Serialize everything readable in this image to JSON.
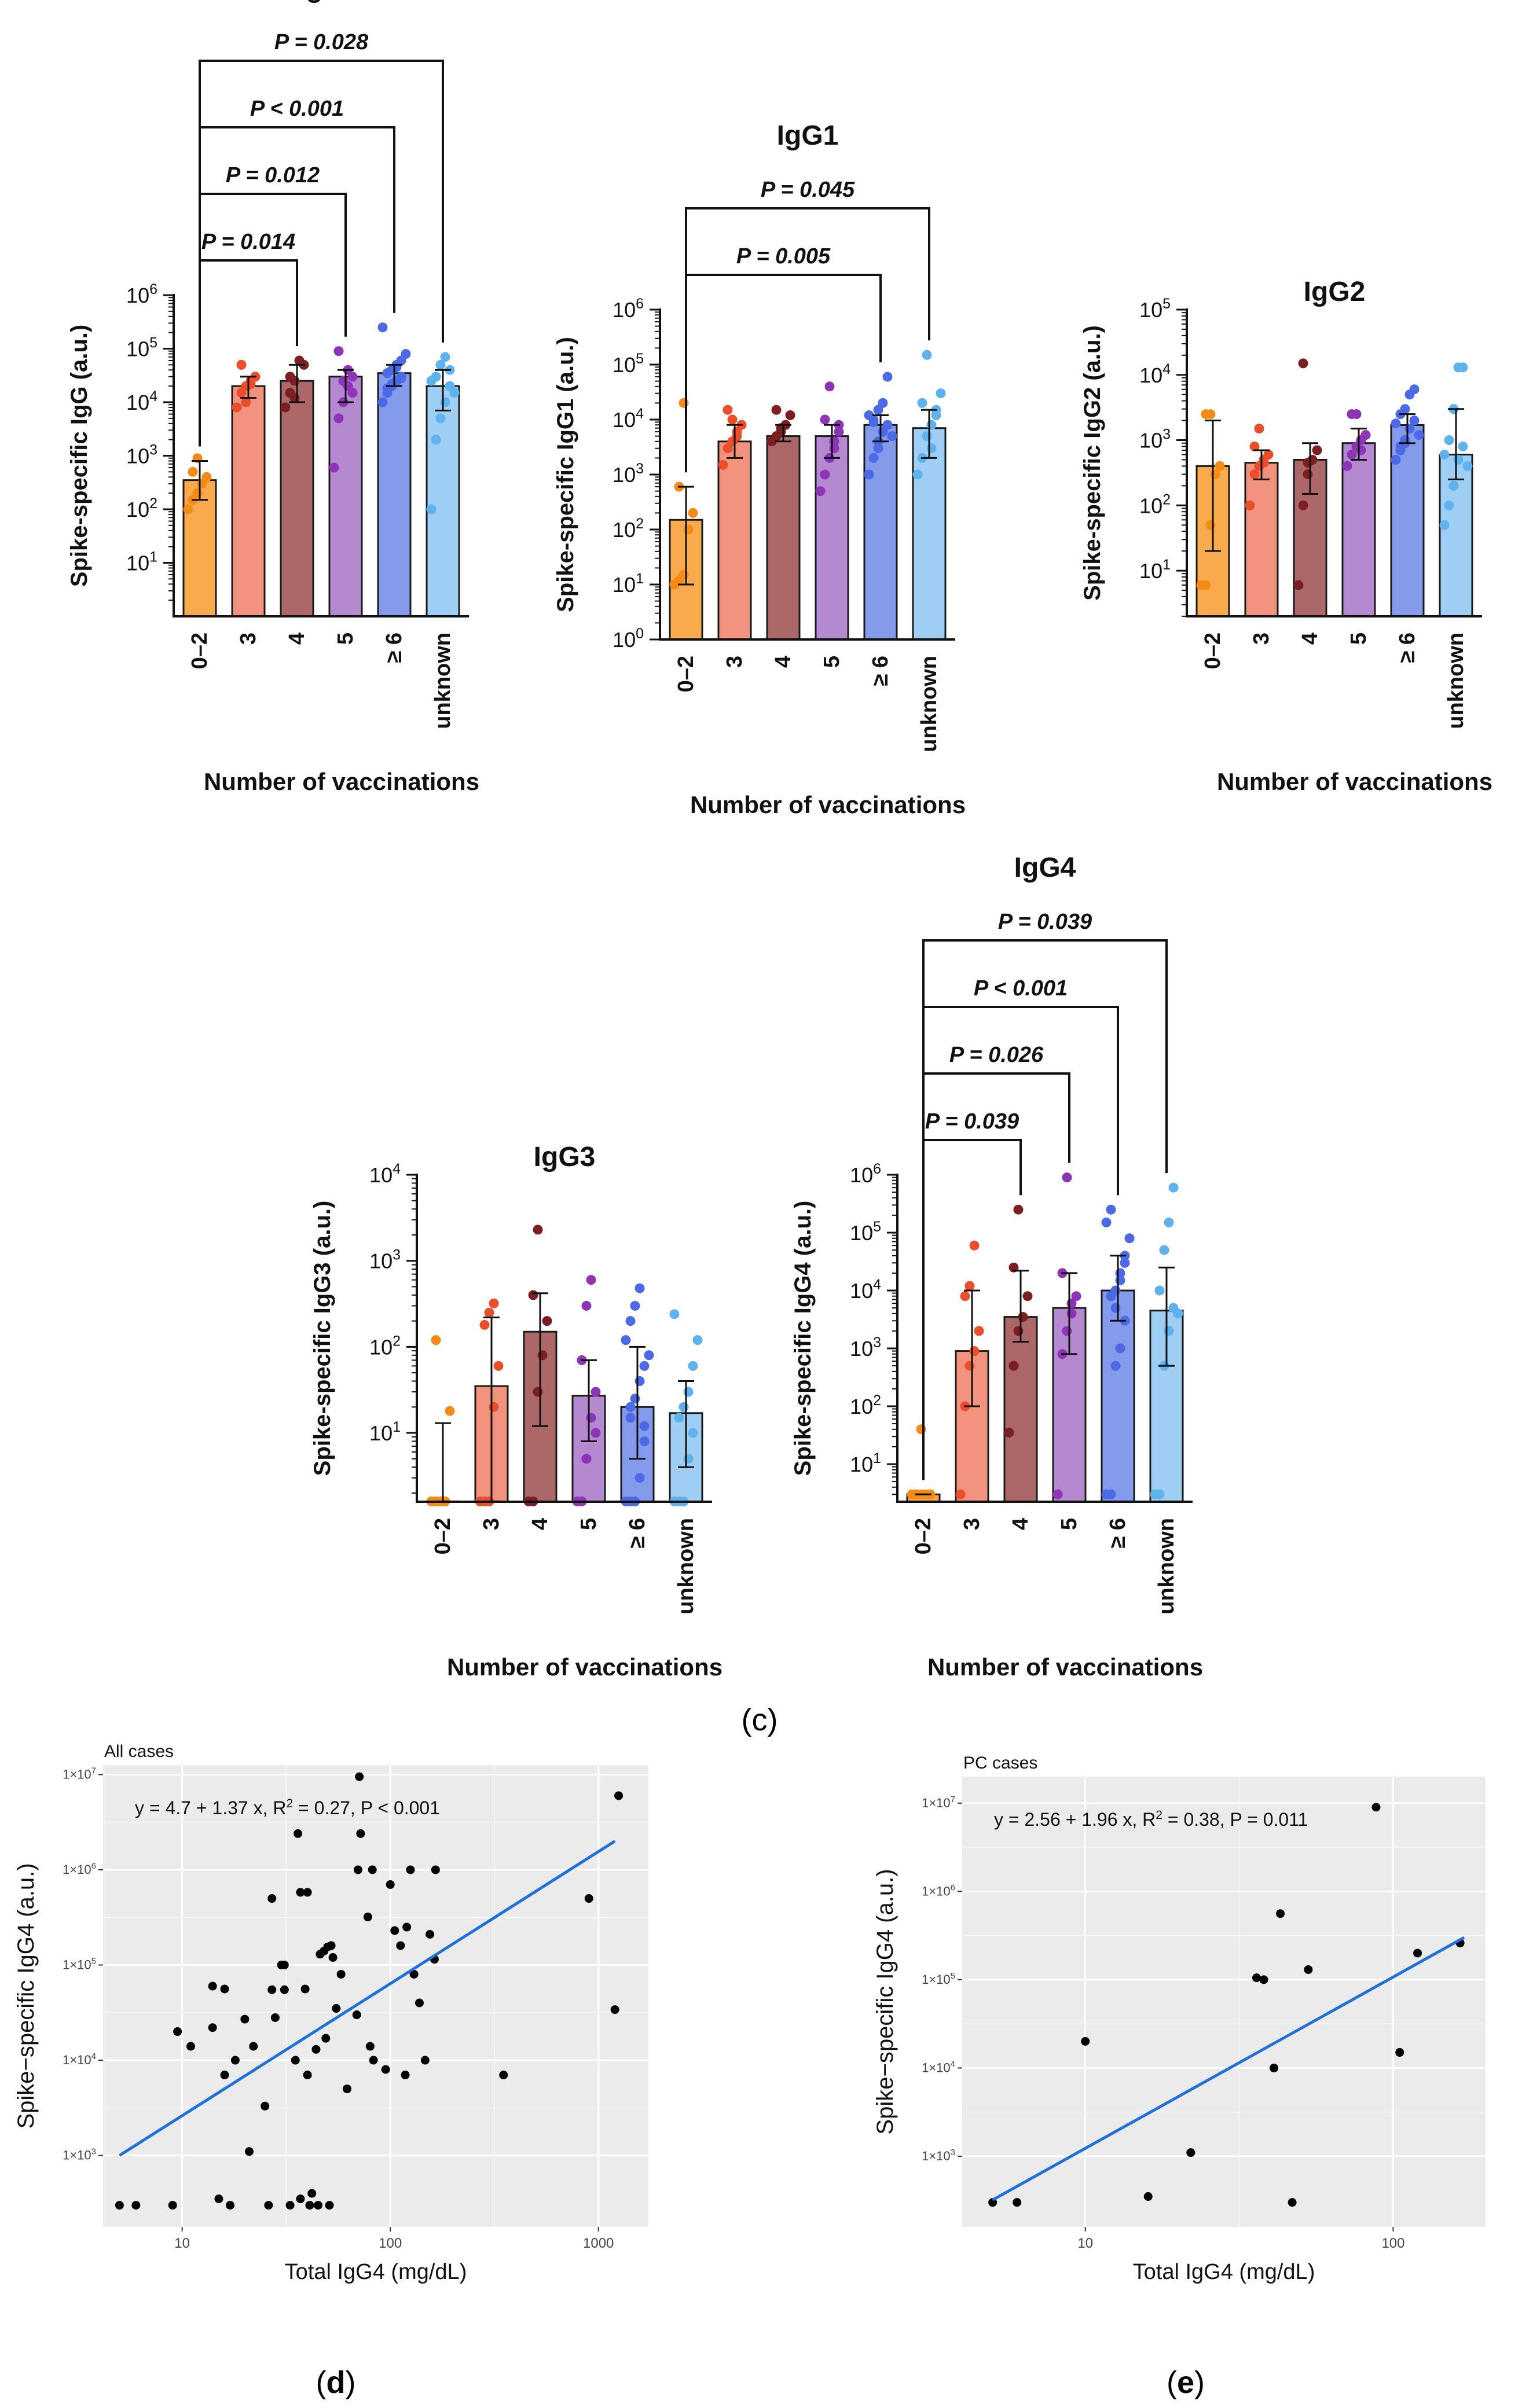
{
  "chart_data": [
    {
      "id": "igg",
      "type": "bar",
      "scale": "log",
      "title": "IgG",
      "ylabel": "Spike-specific IgG (a.u.)",
      "xlabel": "Number of vaccinations",
      "ylim_log10": [
        0,
        6
      ],
      "ytick_exponents": [
        1,
        2,
        3,
        4,
        5,
        6
      ],
      "categories": [
        "0–2",
        "3",
        "4",
        "5",
        "≥ 6",
        "unknown"
      ],
      "colors": [
        "#f79b2e",
        "#f08068",
        "#9e4d4f",
        "#a874c8",
        "#6f88e8",
        "#8dc6f2"
      ],
      "dot_colors": [
        "#f58b17",
        "#ea4e2a",
        "#7c1f22",
        "#8e34b6",
        "#4d6ae6",
        "#5eb3ef"
      ],
      "medians": [
        350,
        20000,
        25000,
        30000,
        35000,
        20000
      ],
      "error_low": [
        150,
        12000,
        10000,
        10000,
        20000,
        7000
      ],
      "error_high": [
        800,
        30000,
        50000,
        40000,
        50000,
        40000
      ],
      "points": [
        [
          100,
          150,
          200,
          300,
          400,
          500,
          900
        ],
        [
          8000,
          15000,
          20000,
          25000,
          30000,
          50000,
          10000,
          22000
        ],
        [
          8000,
          15000,
          25000,
          60000,
          50000,
          30000,
          12000
        ],
        [
          600,
          5000,
          10000,
          20000,
          30000,
          90000,
          25000,
          40000,
          15000
        ],
        [
          10000,
          15000,
          20000,
          25000,
          30000,
          35000,
          40000,
          50000,
          60000,
          80000,
          250000,
          18000,
          22000,
          45000,
          28000
        ],
        [
          100,
          2000,
          5000,
          10000,
          20000,
          30000,
          50000,
          70000,
          40000,
          15000,
          25000
        ]
      ],
      "comparisons": [
        {
          "from": 0,
          "to": 2,
          "label": "P = 0.014"
        },
        {
          "from": 0,
          "to": 3,
          "label": "P = 0.012"
        },
        {
          "from": 0,
          "to": 4,
          "label": "P < 0.001"
        },
        {
          "from": 0,
          "to": 5,
          "label": "P = 0.028"
        }
      ]
    },
    {
      "id": "igg1",
      "type": "bar",
      "scale": "log",
      "title": "IgG1",
      "ylabel": "Spike-specific IgG1 (a.u.)",
      "xlabel": "Number of vaccinations",
      "ylim_log10": [
        0,
        6
      ],
      "ytick_exponents": [
        0,
        1,
        2,
        3,
        4,
        5,
        6
      ],
      "categories": [
        "0–2",
        "3",
        "4",
        "5",
        "≥ 6",
        "unknown"
      ],
      "colors": [
        "#f79b2e",
        "#f08068",
        "#9e4d4f",
        "#a874c8",
        "#6f88e8",
        "#8dc6f2"
      ],
      "dot_colors": [
        "#f58b17",
        "#ea4e2a",
        "#7c1f22",
        "#8e34b6",
        "#4d6ae6",
        "#5eb3ef"
      ],
      "medians": [
        150,
        4000,
        5000,
        5000,
        8000,
        7000
      ],
      "error_low": [
        10,
        2000,
        4000,
        2000,
        4000,
        2000
      ],
      "error_high": [
        600,
        8000,
        8000,
        8000,
        12000,
        15000
      ],
      "points": [
        [
          10,
          12,
          15,
          100,
          200,
          600,
          20000
        ],
        [
          1500,
          3000,
          4000,
          5000,
          8000,
          15000,
          10000,
          6000
        ],
        [
          4000,
          5000,
          6000,
          8000,
          12000,
          15000,
          7000
        ],
        [
          500,
          1000,
          2000,
          4000,
          6000,
          10000,
          40000,
          3000,
          8000
        ],
        [
          1000,
          2000,
          4000,
          6000,
          8000,
          10000,
          15000,
          20000,
          60000,
          5000,
          12000,
          9000,
          3000
        ],
        [
          1000,
          2000,
          5000,
          8000,
          12000,
          20000,
          150000,
          3000,
          15000,
          30000
        ]
      ],
      "comparisons": [
        {
          "from": 0,
          "to": 4,
          "label": "P = 0.005"
        },
        {
          "from": 0,
          "to": 5,
          "label": "P = 0.045"
        }
      ]
    },
    {
      "id": "igg2",
      "type": "bar",
      "scale": "log",
      "title": "IgG2",
      "ylabel": "Spike-specific IgG2 (a.u.)",
      "xlabel": "Number of vaccinations",
      "ylim_log10": [
        0.3,
        5
      ],
      "ytick_exponents": [
        1,
        2,
        3,
        4,
        5
      ],
      "categories": [
        "0–2",
        "3",
        "4",
        "5",
        "≥ 6",
        "unknown"
      ],
      "colors": [
        "#f79b2e",
        "#f08068",
        "#9e4d4f",
        "#a874c8",
        "#6f88e8",
        "#8dc6f2"
      ],
      "dot_colors": [
        "#f58b17",
        "#ea4e2a",
        "#7c1f22",
        "#8e34b6",
        "#4d6ae6",
        "#5eb3ef"
      ],
      "medians": [
        400,
        450,
        500,
        900,
        1700,
        600
      ],
      "error_low": [
        20,
        250,
        150,
        500,
        900,
        250
      ],
      "error_high": [
        2000,
        700,
        900,
        1500,
        2500,
        3000
      ],
      "points": [
        [
          6,
          6,
          50,
          300,
          400,
          2500,
          2500
        ],
        [
          100,
          300,
          400,
          500,
          600,
          800,
          1500,
          450
        ],
        [
          6,
          100,
          300,
          500,
          700,
          15000,
          450
        ],
        [
          400,
          600,
          800,
          1000,
          1200,
          2500,
          2500,
          700
        ],
        [
          500,
          800,
          1000,
          1500,
          2000,
          2500,
          3000,
          5000,
          6000,
          1200,
          1800,
          700,
          900
        ],
        [
          50,
          100,
          200,
          500,
          800,
          1000,
          3000,
          13000,
          13000,
          400,
          600
        ]
      ],
      "comparisons": []
    },
    {
      "id": "igg3",
      "type": "bar",
      "scale": "log",
      "title": "IgG3",
      "ylabel": "Spike-specific IgG3 (a.u.)",
      "xlabel": "Number of vaccinations",
      "ylim_log10": [
        0.2,
        4
      ],
      "ytick_exponents": [
        1,
        2,
        3,
        4
      ],
      "categories": [
        "0–2",
        "3",
        "4",
        "5",
        "≥ 6",
        "unknown"
      ],
      "colors": [
        "#f79b2e",
        "#f08068",
        "#9e4d4f",
        "#a874c8",
        "#6f88e8",
        "#8dc6f2"
      ],
      "dot_colors": [
        "#f58b17",
        "#ea4e2a",
        "#7c1f22",
        "#8e34b6",
        "#4d6ae6",
        "#5eb3ef"
      ],
      "medians": [
        1.6,
        35,
        150,
        27,
        20,
        17
      ],
      "error_low": [
        1.6,
        1.6,
        12,
        8,
        5,
        4
      ],
      "error_high": [
        13,
        220,
        420,
        70,
        100,
        40
      ],
      "points": [
        [
          1.6,
          1.6,
          1.6,
          1.6,
          18,
          120
        ],
        [
          1.6,
          1.6,
          1.6,
          20,
          60,
          180,
          250,
          320
        ],
        [
          1.6,
          1.6,
          30,
          80,
          200,
          400,
          2300
        ],
        [
          1.6,
          1.6,
          5,
          15,
          30,
          70,
          300,
          600,
          10
        ],
        [
          1.6,
          1.6,
          1.6,
          3,
          8,
          15,
          25,
          40,
          60,
          80,
          120,
          200,
          300,
          480,
          12,
          20
        ],
        [
          1.6,
          1.6,
          1.6,
          5,
          10,
          15,
          20,
          30,
          60,
          120,
          240
        ]
      ],
      "comparisons": []
    },
    {
      "id": "igg4",
      "type": "bar",
      "scale": "log",
      "title": "IgG4",
      "ylabel": "Spike-specific IgG4 (a.u.)",
      "xlabel": "Number of vaccinations",
      "ylim_log10": [
        0.35,
        6
      ],
      "ytick_exponents": [
        1,
        2,
        3,
        4,
        5,
        6
      ],
      "categories": [
        "0–2",
        "3",
        "4",
        "5",
        "≥ 6",
        "unknown"
      ],
      "colors": [
        "#f79b2e",
        "#f08068",
        "#9e4d4f",
        "#a874c8",
        "#6f88e8",
        "#8dc6f2"
      ],
      "dot_colors": [
        "#f58b17",
        "#ea4e2a",
        "#7c1f22",
        "#8e34b6",
        "#4d6ae6",
        "#5eb3ef"
      ],
      "medians": [
        3,
        900,
        3500,
        5000,
        10000,
        4500
      ],
      "error_low": [
        3,
        100,
        1300,
        800,
        3000,
        500
      ],
      "error_high": [
        3,
        10000,
        22000,
        20000,
        40000,
        25000
      ],
      "points": [
        [
          3,
          3,
          3,
          3,
          3,
          3,
          40
        ],
        [
          3,
          100,
          500,
          900,
          2000,
          8000,
          12000,
          60000
        ],
        [
          35,
          500,
          2000,
          3500,
          8000,
          25000,
          250000
        ],
        [
          3,
          800,
          2000,
          4000,
          8000,
          20000,
          900000,
          6000
        ],
        [
          3,
          3,
          500,
          1000,
          3000,
          8000,
          10000,
          20000,
          40000,
          80000,
          150000,
          250000,
          5000,
          15000,
          30000
        ],
        [
          3,
          3,
          500,
          2000,
          5000,
          10000,
          50000,
          150000,
          600000,
          4000
        ]
      ],
      "comparisons": [
        {
          "from": 0,
          "to": 2,
          "label": "P = 0.039"
        },
        {
          "from": 0,
          "to": 3,
          "label": "P = 0.026"
        },
        {
          "from": 0,
          "to": 4,
          "label": "P < 0.001"
        },
        {
          "from": 0,
          "to": 5,
          "label": "P = 0.039"
        }
      ]
    },
    {
      "id": "all-cases",
      "type": "scatter",
      "scale": "loglog",
      "title": "All cases",
      "equation_prefix": "y = 4.7 + 1.37 x, R",
      "equation_sup": "2",
      "equation_suffix": " = 0.27, P < 0.001",
      "xlabel": "Total IgG4 (mg/dL)",
      "ylabel": "Spike−specific IgG4 (a.u.)",
      "xlim_log10": [
        0.62,
        3.24
      ],
      "ylim_log10": [
        2.25,
        7.1
      ],
      "xticks": [
        {
          "value": 10,
          "label": "10"
        },
        {
          "value": 100,
          "label": "100"
        },
        {
          "value": 1000,
          "label": "1000"
        }
      ],
      "yticks": [
        {
          "exp": 3,
          "label": "1×10"
        },
        {
          "exp": 4,
          "label": "1×10"
        },
        {
          "exp": 5,
          "label": "1×10"
        },
        {
          "exp": 6,
          "label": "1×10"
        },
        {
          "exp": 7,
          "label": "1×10"
        }
      ],
      "fit": {
        "x": [
          5,
          1200
        ],
        "y": [
          1000,
          2000000
        ]
      },
      "points": [
        [
          5,
          300
        ],
        [
          6,
          300
        ],
        [
          9,
          300
        ],
        [
          9.5,
          20000
        ],
        [
          11,
          14000
        ],
        [
          14,
          60000
        ],
        [
          14,
          22000
        ],
        [
          15,
          350
        ],
        [
          16,
          7000
        ],
        [
          16,
          56000
        ],
        [
          17,
          300
        ],
        [
          18,
          10000
        ],
        [
          20,
          27000
        ],
        [
          21,
          1100
        ],
        [
          22,
          14000
        ],
        [
          25,
          3300
        ],
        [
          26,
          300
        ],
        [
          27,
          55000
        ],
        [
          27,
          500000
        ],
        [
          28,
          28000
        ],
        [
          30,
          100000
        ],
        [
          31,
          100000
        ],
        [
          31,
          55000
        ],
        [
          33,
          300
        ],
        [
          35,
          10000
        ],
        [
          36,
          2400000
        ],
        [
          37,
          580000
        ],
        [
          37,
          350
        ],
        [
          39,
          56000
        ],
        [
          40,
          580000
        ],
        [
          40,
          7000
        ],
        [
          41,
          300
        ],
        [
          42,
          400
        ],
        [
          44,
          13000
        ],
        [
          45,
          300
        ],
        [
          46,
          130000
        ],
        [
          48,
          140000
        ],
        [
          49,
          17000
        ],
        [
          50,
          155000
        ],
        [
          51,
          300
        ],
        [
          52,
          160000
        ],
        [
          53,
          120000
        ],
        [
          55,
          35000
        ],
        [
          58,
          80000
        ],
        [
          62,
          5000
        ],
        [
          69,
          30000
        ],
        [
          70,
          1000000
        ],
        [
          71,
          9500000
        ],
        [
          72,
          2400000
        ],
        [
          78,
          320000
        ],
        [
          80,
          14000
        ],
        [
          82,
          1000000
        ],
        [
          83,
          10000
        ],
        [
          95,
          8000
        ],
        [
          100,
          700000
        ],
        [
          105,
          230000
        ],
        [
          112,
          160000
        ],
        [
          118,
          7000
        ],
        [
          120,
          250000
        ],
        [
          125,
          1000000
        ],
        [
          130,
          80000
        ],
        [
          138,
          40000
        ],
        [
          147,
          10000
        ],
        [
          155,
          210000
        ],
        [
          163,
          115000
        ],
        [
          165,
          1000000
        ],
        [
          350,
          7000
        ],
        [
          900,
          500000
        ],
        [
          1200,
          34000
        ],
        [
          1250,
          6000000
        ]
      ]
    },
    {
      "id": "pc-cases",
      "type": "scatter",
      "scale": "loglog",
      "title": "PC cases",
      "equation_prefix": "y = 2.56 + 1.96 x, R",
      "equation_sup": "2",
      "equation_suffix": " = 0.38, P = 0.011",
      "xlabel": "Total IgG4 (mg/dL)",
      "ylabel": "Spike−specific IgG4 (a.u.)",
      "xlim_log10": [
        0.6,
        2.3
      ],
      "ylim_log10": [
        2.2,
        7.3
      ],
      "xticks": [
        {
          "value": 10,
          "label": "10"
        },
        {
          "value": 100,
          "label": "100"
        }
      ],
      "yticks": [
        {
          "exp": 3,
          "label": "1×10"
        },
        {
          "exp": 4,
          "label": "1×10"
        },
        {
          "exp": 5,
          "label": "1×10"
        },
        {
          "exp": 6,
          "label": "1×10"
        },
        {
          "exp": 7,
          "label": "1×10"
        }
      ],
      "fit": {
        "x": [
          5,
          170
        ],
        "y": [
          320,
          300000
        ]
      },
      "points": [
        [
          5,
          300
        ],
        [
          6,
          300
        ],
        [
          10,
          20000
        ],
        [
          16,
          350
        ],
        [
          22,
          1100
        ],
        [
          36,
          105000
        ],
        [
          38,
          100000
        ],
        [
          41,
          10000
        ],
        [
          43,
          560000
        ],
        [
          47,
          300
        ],
        [
          53,
          130000
        ],
        [
          88,
          9000000
        ],
        [
          105,
          15000
        ],
        [
          120,
          200000
        ],
        [
          165,
          260000
        ]
      ]
    }
  ],
  "figure_labels": {
    "c": "(c)",
    "d_paren_open": "(",
    "d_letter": "d",
    "d_paren_close": ")",
    "e_paren_open": "(",
    "e_letter": "e",
    "e_paren_close": ")"
  }
}
